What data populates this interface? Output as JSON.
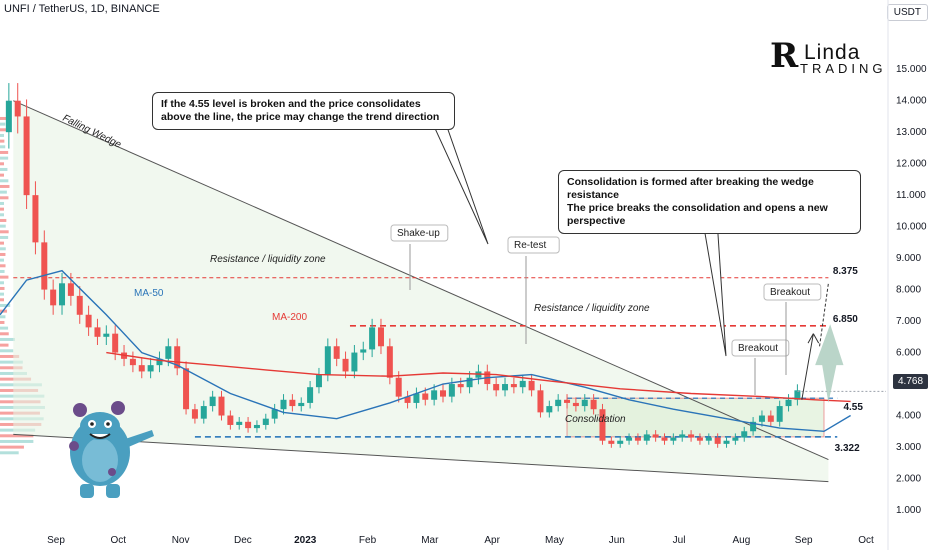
{
  "header": {
    "title": "UNFI / TetherUS, 1D, BINANCE",
    "unit": "USDT"
  },
  "logo": {
    "mark": "R",
    "line1": "Linda",
    "line2": "TRADING"
  },
  "callouts": {
    "top": "If the 4.55 level is broken and the price consolidates above the line, the price may change the trend direction",
    "right_line1": "Consolidation is formed after breaking the wedge resistance",
    "right_line2": "The price breaks the consolidation and opens a new perspective"
  },
  "current_price": "4.768",
  "colors": {
    "up": "#26a69a",
    "down": "#ef5350",
    "ma50": "#2a74b8",
    "ma200": "#e53935",
    "resistance_line": "#e53935",
    "support_line": "#1e6fb8",
    "wedge": "#555555",
    "zone_fill": "#e8f4e4"
  },
  "chart_data": {
    "type": "candlestick",
    "title": "UNFI / TetherUS, 1D, BINANCE",
    "y_axis": {
      "unit": "USDT",
      "range": [
        0.3,
        16.5
      ],
      "ticks": [
        1.0,
        2.0,
        3.0,
        4.0,
        5.0,
        6.0,
        7.0,
        8.0,
        9.0,
        10.0,
        11.0,
        12.0,
        13.0,
        14.0,
        15.0
      ],
      "tick_labels": [
        "1.000",
        "2.000",
        "3.000",
        "4.000",
        "5.000",
        "6.000",
        "7.000",
        "8.000",
        "9.000",
        "10.000",
        "11.000",
        "12.000",
        "13.000",
        "14.000",
        "15.000"
      ]
    },
    "x_axis": {
      "labels": [
        "Sep",
        "Oct",
        "Nov",
        "Dec",
        "2023",
        "Feb",
        "Mar",
        "Apr",
        "May",
        "Jun",
        "Jul",
        "Aug",
        "Sep",
        "Oct"
      ],
      "bold": [
        "2023"
      ]
    },
    "series": [
      {
        "name": "MA-50",
        "points": [
          [
            0,
            7.2
          ],
          [
            0.03,
            8.3
          ],
          [
            0.07,
            8.6
          ],
          [
            0.12,
            7.2
          ],
          [
            0.16,
            6.0
          ],
          [
            0.2,
            5.6
          ],
          [
            0.26,
            4.7
          ],
          [
            0.32,
            4.1
          ],
          [
            0.38,
            3.9
          ],
          [
            0.44,
            4.4
          ],
          [
            0.5,
            5.0
          ],
          [
            0.55,
            5.2
          ],
          [
            0.6,
            5.3
          ],
          [
            0.66,
            4.9
          ],
          [
            0.71,
            4.5
          ],
          [
            0.76,
            4.2
          ],
          [
            0.82,
            3.9
          ],
          [
            0.88,
            3.6
          ],
          [
            0.93,
            3.5
          ],
          [
            0.96,
            4.0
          ]
        ]
      },
      {
        "name": "MA-200",
        "points": [
          [
            0.12,
            6.0
          ],
          [
            0.18,
            5.75
          ],
          [
            0.24,
            5.6
          ],
          [
            0.3,
            5.45
          ],
          [
            0.36,
            5.3
          ],
          [
            0.44,
            5.25
          ],
          [
            0.5,
            5.35
          ],
          [
            0.56,
            5.3
          ],
          [
            0.62,
            5.1
          ],
          [
            0.7,
            4.85
          ],
          [
            0.78,
            4.7
          ],
          [
            0.86,
            4.6
          ],
          [
            0.92,
            4.5
          ],
          [
            0.96,
            4.45
          ]
        ]
      }
    ],
    "candles_overview": [
      [
        0.0,
        13.0
      ],
      [
        0.01,
        14.0
      ],
      [
        0.02,
        13.5
      ],
      [
        0.03,
        11.0
      ],
      [
        0.04,
        9.5
      ],
      [
        0.05,
        8.0
      ],
      [
        0.06,
        7.5
      ],
      [
        0.07,
        8.2
      ],
      [
        0.08,
        7.8
      ],
      [
        0.09,
        7.2
      ],
      [
        0.1,
        6.8
      ],
      [
        0.11,
        6.5
      ],
      [
        0.12,
        6.6
      ],
      [
        0.13,
        6.0
      ],
      [
        0.14,
        5.8
      ],
      [
        0.15,
        5.6
      ],
      [
        0.16,
        5.4
      ],
      [
        0.17,
        5.6
      ],
      [
        0.18,
        5.8
      ],
      [
        0.19,
        6.2
      ],
      [
        0.2,
        5.5
      ],
      [
        0.21,
        4.2
      ],
      [
        0.22,
        3.9
      ],
      [
        0.23,
        4.3
      ],
      [
        0.24,
        4.6
      ],
      [
        0.25,
        4.0
      ],
      [
        0.26,
        3.7
      ],
      [
        0.27,
        3.8
      ],
      [
        0.28,
        3.6
      ],
      [
        0.29,
        3.7
      ],
      [
        0.3,
        3.9
      ],
      [
        0.31,
        4.2
      ],
      [
        0.32,
        4.5
      ],
      [
        0.33,
        4.3
      ],
      [
        0.34,
        4.4
      ],
      [
        0.35,
        4.9
      ],
      [
        0.36,
        5.3
      ],
      [
        0.37,
        6.2
      ],
      [
        0.38,
        5.8
      ],
      [
        0.39,
        5.4
      ],
      [
        0.4,
        6.0
      ],
      [
        0.41,
        6.1
      ],
      [
        0.42,
        6.8
      ],
      [
        0.43,
        6.2
      ],
      [
        0.44,
        5.2
      ],
      [
        0.45,
        4.6
      ],
      [
        0.46,
        4.4
      ],
      [
        0.47,
        4.7
      ],
      [
        0.48,
        4.5
      ],
      [
        0.49,
        4.8
      ],
      [
        0.5,
        4.6
      ],
      [
        0.51,
        5.0
      ],
      [
        0.52,
        4.9
      ],
      [
        0.53,
        5.2
      ],
      [
        0.54,
        5.4
      ],
      [
        0.55,
        5.0
      ],
      [
        0.56,
        4.8
      ],
      [
        0.57,
        5.0
      ],
      [
        0.58,
        4.9
      ],
      [
        0.59,
        5.1
      ],
      [
        0.6,
        4.8
      ],
      [
        0.61,
        4.1
      ],
      [
        0.62,
        4.3
      ],
      [
        0.63,
        4.5
      ],
      [
        0.64,
        4.4
      ],
      [
        0.65,
        4.3
      ],
      [
        0.66,
        4.5
      ],
      [
        0.67,
        4.2
      ],
      [
        0.68,
        3.2
      ],
      [
        0.69,
        3.1
      ],
      [
        0.7,
        3.2
      ],
      [
        0.71,
        3.3
      ],
      [
        0.72,
        3.2
      ],
      [
        0.73,
        3.4
      ],
      [
        0.74,
        3.3
      ],
      [
        0.75,
        3.2
      ],
      [
        0.76,
        3.3
      ],
      [
        0.77,
        3.4
      ],
      [
        0.78,
        3.3
      ],
      [
        0.79,
        3.2
      ],
      [
        0.8,
        3.3
      ],
      [
        0.81,
        3.1
      ],
      [
        0.82,
        3.2
      ],
      [
        0.83,
        3.3
      ],
      [
        0.84,
        3.5
      ],
      [
        0.85,
        3.8
      ],
      [
        0.86,
        4.0
      ],
      [
        0.87,
        3.8
      ],
      [
        0.88,
        4.3
      ],
      [
        0.89,
        4.5
      ],
      [
        0.9,
        4.8
      ]
    ],
    "levels": [
      {
        "value": 8.375,
        "label": "8.375"
      },
      {
        "value": 6.85,
        "label": "6.850"
      },
      {
        "value": 4.55,
        "label": "4.55"
      },
      {
        "value": 3.322,
        "label": "3.322"
      }
    ],
    "annotations": [
      "Falling Wedge",
      "Resistance / liquidity zone",
      "Resistance / liquidity zone",
      "MA-50",
      "MA-200",
      "Shake-up",
      "Re-test",
      "Consolidation",
      "Breakout",
      "Breakout"
    ],
    "price_marker": "4.768"
  }
}
